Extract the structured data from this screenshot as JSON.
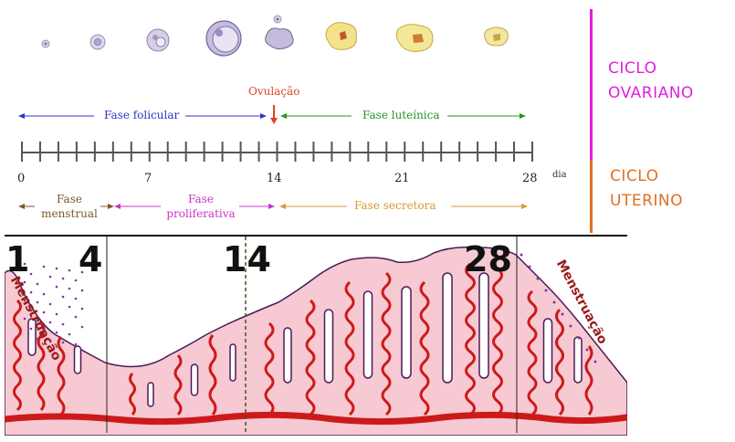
{
  "ovarian_cycle_label": [
    "CICLO",
    "OVARIANO"
  ],
  "uterine_cycle_label": [
    "CICLO",
    "UTERINO"
  ],
  "ovulation_label": "Ovulação",
  "follicular_phase_label": "Fase folicular",
  "luteal_phase_label": "Fase luteínica",
  "day_axis": {
    "ticks": [
      "0",
      "7",
      "14",
      "21",
      "28"
    ],
    "unit": "dia"
  },
  "uterine_phases": {
    "menstrual": [
      "Fase",
      "menstrual"
    ],
    "proliferative": [
      "Fase",
      "proliferativa"
    ],
    "secretory": "Fase secretora"
  },
  "endometrium": {
    "day_markers": [
      "1",
      "4",
      "14",
      "28"
    ],
    "menstruation_label": "Menstruação"
  },
  "colors": {
    "ovarian": "#e020e0",
    "uterine": "#e07020",
    "follicular": "#3333cc",
    "luteal": "#229922",
    "ovulation": "#dd4422",
    "menstrual": "#7a5a2a",
    "proliferative": "#cc33cc",
    "secretory": "#d49a30",
    "tissue": "#f7c9d2",
    "gland_outline": "#4a1a5a",
    "vessel": "#cc1a1a"
  }
}
